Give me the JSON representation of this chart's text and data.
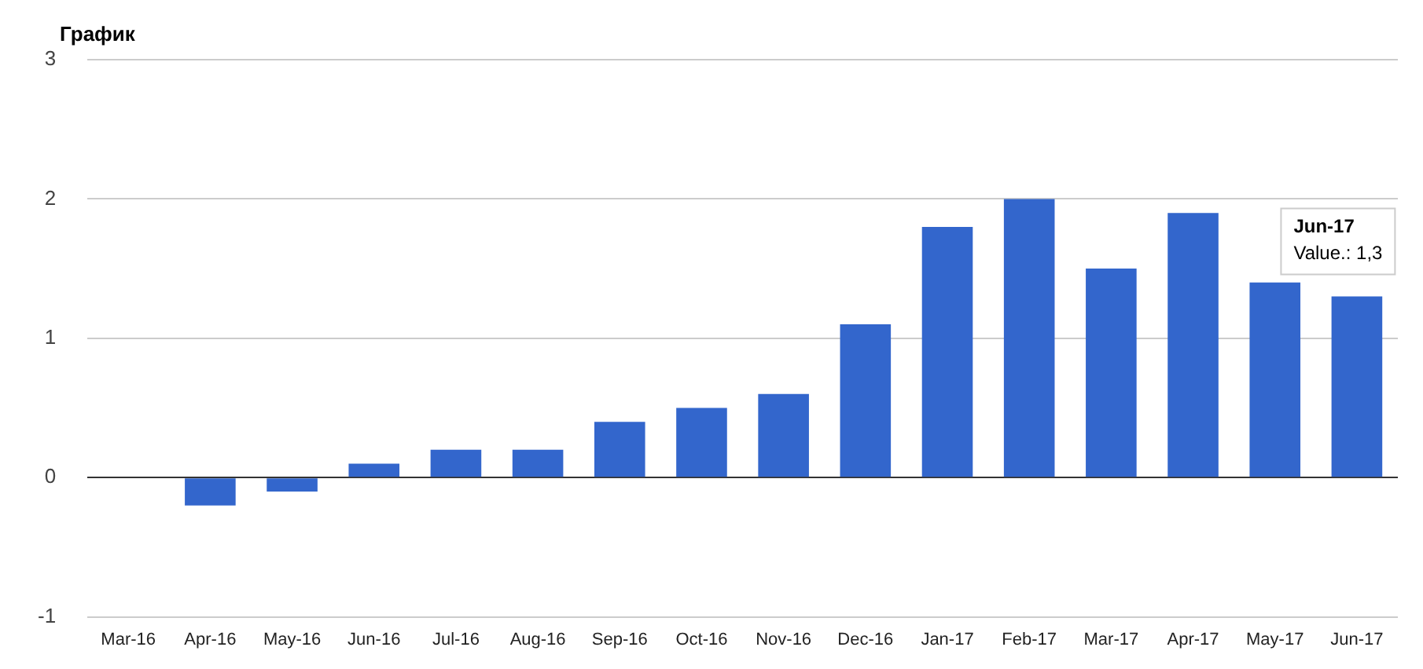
{
  "chart_data": {
    "type": "bar",
    "title": "График",
    "categories": [
      "Mar-16",
      "Apr-16",
      "May-16",
      "Jun-16",
      "Jul-16",
      "Aug-16",
      "Sep-16",
      "Oct-16",
      "Nov-16",
      "Dec-16",
      "Jan-17",
      "Feb-17",
      "Mar-17",
      "Apr-17",
      "May-17",
      "Jun-17"
    ],
    "values": [
      0,
      -0.2,
      -0.1,
      0.1,
      0.2,
      0.2,
      0.4,
      0.5,
      0.6,
      1.1,
      1.8,
      2.0,
      1.5,
      1.9,
      1.4,
      1.3
    ],
    "color": "#3366cc",
    "ylim": [
      -1,
      3
    ],
    "yticks": [
      -1,
      0,
      1,
      2,
      3
    ],
    "grid": "y",
    "legend": false,
    "annotations": [
      {
        "text": "Jun-17\nValue.: 1,3",
        "x": "Jun-17",
        "y": 1.3
      }
    ]
  }
}
